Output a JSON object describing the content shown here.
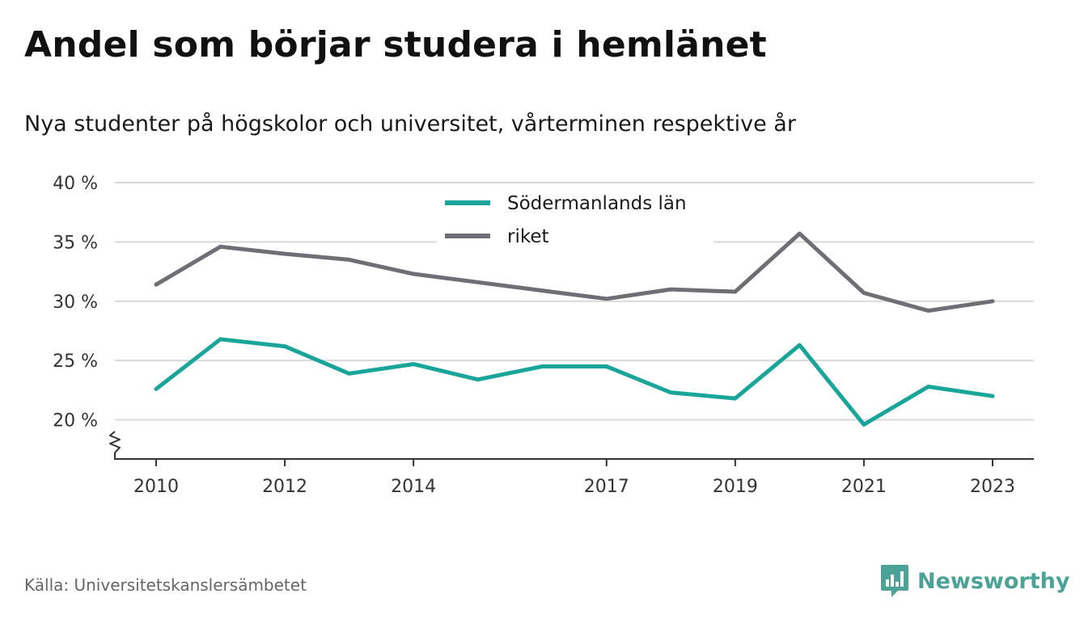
{
  "title": "Andel som börjar studera i hemlänet",
  "subtitle": "Nya studenter på högskolor och universitet, vårterminen respektive år",
  "source": "Källa: Universitetskanslersämbetet",
  "logo_text": "Newsworthy",
  "chart_data": {
    "type": "line",
    "x": [
      2010,
      2011,
      2012,
      2013,
      2014,
      2015,
      2016,
      2017,
      2018,
      2019,
      2020,
      2021,
      2022,
      2023
    ],
    "x_tick_values": [
      2010,
      2012,
      2014,
      2017,
      2019,
      2021,
      2023
    ],
    "x_tick_labels": [
      "2010",
      "2012",
      "2014",
      "2017",
      "2019",
      "2021",
      "2023"
    ],
    "y_tick_values": [
      20,
      25,
      30,
      35,
      40
    ],
    "y_tick_labels": [
      "20 %",
      "25 %",
      "30 %",
      "35 %",
      "40 %"
    ],
    "ylim": [
      16.7,
      40
    ],
    "y_axis_break": true,
    "grid": true,
    "legend_position": "top-center",
    "series": [
      {
        "name": "Södermanlands län",
        "color": "#1aa59a",
        "values": [
          22.6,
          26.8,
          26.2,
          23.9,
          24.7,
          23.4,
          24.5,
          24.5,
          22.3,
          21.8,
          26.3,
          19.6,
          22.8,
          22.0
        ]
      },
      {
        "name": "riket",
        "color": "#6e6e74",
        "values": [
          31.4,
          34.6,
          34.0,
          33.5,
          32.3,
          31.6,
          30.9,
          30.2,
          31.0,
          30.8,
          35.7,
          30.7,
          29.2,
          30.0
        ]
      }
    ]
  }
}
